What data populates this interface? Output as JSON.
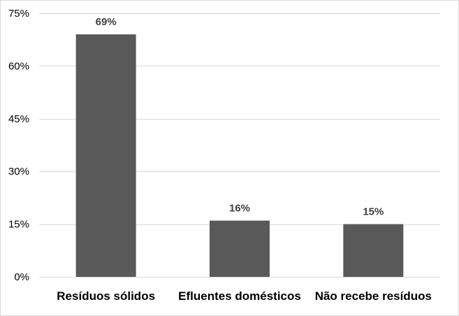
{
  "chart_data": {
    "type": "bar",
    "categories": [
      "Resíduos sólidos",
      "Efluentes domésticos",
      "Não recebe resíduos"
    ],
    "values": [
      69,
      16,
      15
    ],
    "data_labels": [
      "69%",
      "16%",
      "15%"
    ],
    "yticks": [
      0,
      15,
      30,
      45,
      60,
      75
    ],
    "ytick_labels": [
      "0%",
      "15%",
      "30%",
      "45%",
      "60%",
      "75%"
    ],
    "ylim": [
      0,
      75
    ],
    "title": "",
    "xlabel": "",
    "ylabel": "",
    "grid": true,
    "legend": "none",
    "bar_color": "#595959",
    "grid_color": "#d9d9d9"
  }
}
